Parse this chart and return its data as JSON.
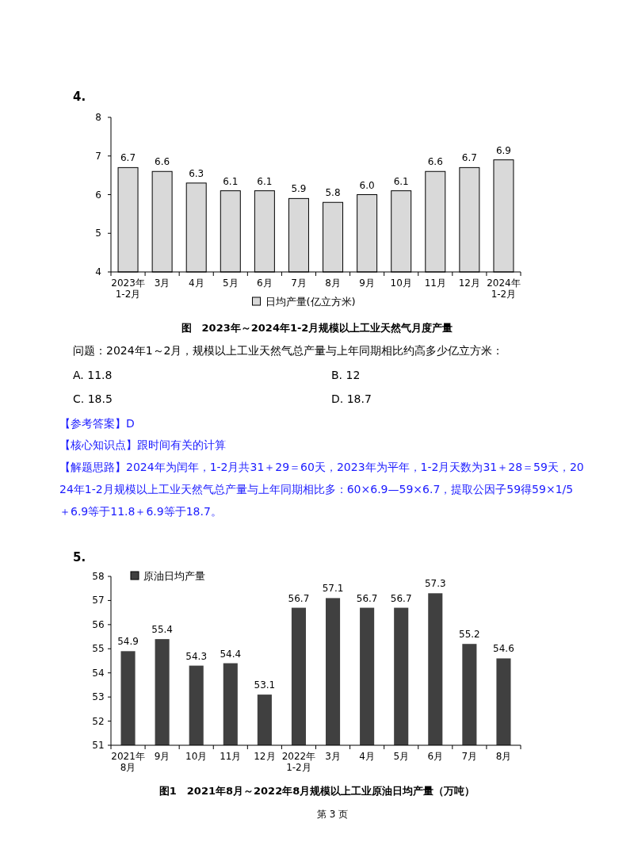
{
  "chart_data": [
    {
      "type": "bar",
      "title": "图　2023年～2024年1-2月规模以上工业天然气月度产量",
      "categories": [
        "2023年\n1-2月",
        "3月",
        "4月",
        "5月",
        "6月",
        "7月",
        "8月",
        "9月",
        "10月",
        "11月",
        "12月",
        "2024年\n1-2月"
      ],
      "series": [
        {
          "name": "日均产量(亿立方米)",
          "color": "#d9d9d9",
          "values": [
            6.7,
            6.6,
            6.3,
            6.1,
            6.1,
            5.9,
            5.8,
            6.0,
            6.1,
            6.6,
            6.7,
            6.9
          ],
          "value_labels": [
            "6.7",
            "6.6",
            "6.3",
            "6.1",
            "6.1",
            "5.9",
            "5.8",
            "6.0",
            "6.1",
            "6.6",
            "6.7",
            "6.9"
          ]
        }
      ],
      "ylim": [
        4,
        8
      ],
      "yticks": [
        4,
        5,
        6,
        7,
        8
      ],
      "legend": "bottom",
      "annotations": [
        "4.",
        "问题：2024年1～2月，规模以上工业天然气总产量与上年同期相比约高多少亿立方米：",
        "A. 11.8",
        "B. 12",
        "C. 18.5",
        "D. 18.7",
        "【参考答案】D",
        "【核心知识点】跟时间有关的计算",
        "【解题思路】2024年为闰年，1-2月共31＋29＝60天，2023年为平年，1-2月天数为31＋28＝59天，2024年1-2月规模以上工业天然气总产量与上年同期相比多：60×6.9—59×6.7，提取公因子59得59×1/5＋6.9等于11.8＋6.9等于18.7。"
      ]
    },
    {
      "type": "bar",
      "title": "图1　2021年8月～2022年8月规模以上工业原油日均产量（万吨）",
      "categories": [
        "2021年\n8月",
        "9月",
        "10月",
        "11月",
        "12月",
        "2022年\n1-2月",
        "3月",
        "4月",
        "5月",
        "6月",
        "7月",
        "8月"
      ],
      "series": [
        {
          "name": "原油日均产量",
          "color": "#404040",
          "values": [
            54.9,
            55.4,
            54.3,
            54.4,
            53.1,
            56.7,
            57.1,
            56.7,
            56.7,
            57.3,
            55.2,
            54.6
          ]
        }
      ],
      "ylim": [
        51,
        58
      ],
      "yticks": [
        51,
        52,
        53,
        54,
        55,
        56,
        57,
        58
      ],
      "legend": "top left",
      "data_labels": true,
      "annotations": [
        "5.",
        "第 3 页"
      ]
    }
  ]
}
